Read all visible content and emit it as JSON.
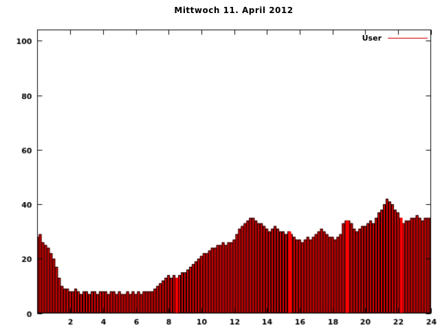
{
  "chart": {
    "title": "Mittwoch 11. April 2012",
    "legend": {
      "label": "User",
      "color": "#cc0000"
    }
  },
  "chart_data": {
    "type": "bar",
    "title": "Mittwoch 11. April 2012",
    "xlabel": "",
    "ylabel": "",
    "xlim": [
      0,
      24
    ],
    "ylim": [
      0,
      104
    ],
    "x_ticks": [
      2,
      4,
      6,
      8,
      10,
      12,
      14,
      16,
      18,
      20,
      22,
      24
    ],
    "y_ticks": [
      0,
      20,
      40,
      60,
      80,
      100
    ],
    "grid": false,
    "legend_position": "top-right",
    "legend_entries": [
      "User"
    ],
    "colors": {
      "bar_fill": "#e60000",
      "bar_border": "#000000",
      "accent": "#ff0000",
      "axis": "#000000",
      "background": "#ffffff"
    },
    "series": [
      {
        "name": "User",
        "x_start": 0,
        "x_end": 24,
        "values": [
          28,
          29,
          26,
          25,
          24,
          22,
          20,
          17,
          13,
          10,
          9,
          9,
          8,
          8,
          9,
          8,
          7,
          8,
          8,
          7,
          8,
          8,
          7,
          8,
          8,
          8,
          7,
          8,
          8,
          7,
          8,
          7,
          7,
          8,
          7,
          8,
          7,
          8,
          7,
          8,
          8,
          8,
          8,
          9,
          10,
          11,
          12,
          13,
          14,
          13,
          14,
          13,
          14,
          15,
          15,
          16,
          17,
          18,
          19,
          20,
          21,
          22,
          22,
          23,
          24,
          24,
          25,
          25,
          26,
          25,
          26,
          26,
          27,
          29,
          31,
          32,
          33,
          34,
          35,
          35,
          34,
          33,
          33,
          32,
          31,
          30,
          31,
          32,
          31,
          30,
          30,
          29,
          30,
          29,
          28,
          27,
          27,
          26,
          27,
          28,
          27,
          28,
          29,
          30,
          31,
          30,
          29,
          28,
          28,
          27,
          28,
          29,
          33,
          34,
          34,
          33,
          31,
          30,
          31,
          32,
          32,
          33,
          34,
          33,
          35,
          37,
          38,
          40,
          42,
          41,
          40,
          38,
          37,
          35,
          33,
          34,
          34,
          35,
          35,
          36,
          35,
          34,
          35,
          35,
          35
        ]
      }
    ],
    "accent_spikes_x": [
      8.5,
      15.4,
      18.9,
      22.2
    ]
  }
}
